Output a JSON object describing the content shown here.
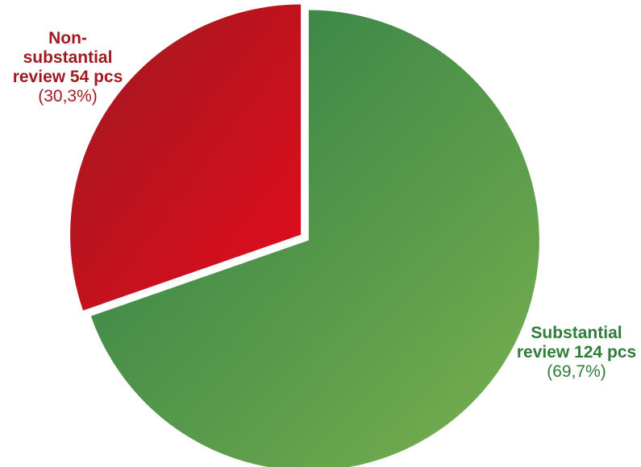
{
  "chart_data": {
    "type": "pie",
    "slices": [
      {
        "name": "Substantial review 124 pcs",
        "value": 124,
        "percent_label": "(69,7%)",
        "color_start": "#2a7a45",
        "color_end": "#7ab24f",
        "label_color": "#2e7d3b"
      },
      {
        "name": "Non-substantial review 54 pcs",
        "value": 54,
        "percent_label": "(30,3%)",
        "color_start": "#9e1a20",
        "color_end": "#e30b1c",
        "label_color": "#a01a1f"
      }
    ]
  }
}
